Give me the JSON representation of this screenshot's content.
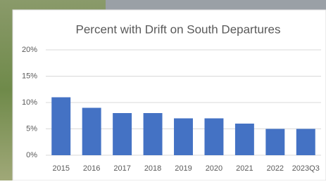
{
  "chart_data": {
    "type": "bar",
    "title": "Percent with Drift on South Departures",
    "categories": [
      "2015",
      "2016",
      "2017",
      "2018",
      "2019",
      "2020",
      "2021",
      "2022",
      "2023Q3"
    ],
    "values": [
      11,
      9,
      8,
      8,
      7,
      7,
      6,
      5,
      5
    ],
    "color": "#4472c4",
    "ylim": [
      0,
      20
    ],
    "yticks": [
      {
        "value": 0,
        "label": "0%"
      },
      {
        "value": 5,
        "label": "5%"
      },
      {
        "value": 10,
        "label": "10%"
      },
      {
        "value": 15,
        "label": "15%"
      },
      {
        "value": 20,
        "label": "20%"
      }
    ],
    "grid": true
  }
}
